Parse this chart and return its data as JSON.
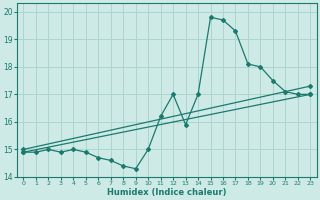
{
  "xlabel": "Humidex (Indice chaleur)",
  "ylabel": "",
  "bg_color": "#ceeae6",
  "grid_color": "#aed4cf",
  "line_color": "#1a7a6e",
  "xlim": [
    -0.5,
    23.5
  ],
  "ylim": [
    14.0,
    20.3
  ],
  "yticks": [
    14,
    15,
    16,
    17,
    18,
    19,
    20
  ],
  "xtick_labels": [
    "0",
    "1",
    "2",
    "3",
    "4",
    "5",
    "6",
    "7",
    "8",
    "9",
    "10",
    "11",
    "12",
    "13",
    "14",
    "15",
    "16",
    "17",
    "18",
    "19",
    "20",
    "21",
    "22",
    "23"
  ],
  "series": [
    {
      "x": [
        0,
        1,
        2,
        3,
        4,
        5,
        6,
        7,
        8,
        9,
        10,
        11,
        12,
        13,
        14,
        15,
        16,
        17,
        18,
        19,
        20,
        21,
        22,
        23
      ],
      "y": [
        14.9,
        14.9,
        15.0,
        14.9,
        15.0,
        14.9,
        14.7,
        14.6,
        14.4,
        14.3,
        15.0,
        16.2,
        17.0,
        15.9,
        17.0,
        19.8,
        19.7,
        19.3,
        18.1,
        18.0,
        17.5,
        17.1,
        17.0,
        17.0
      ]
    },
    {
      "x": [
        0,
        23
      ],
      "y": [
        15.0,
        17.3
      ]
    },
    {
      "x": [
        0,
        23
      ],
      "y": [
        14.9,
        17.0
      ]
    }
  ]
}
